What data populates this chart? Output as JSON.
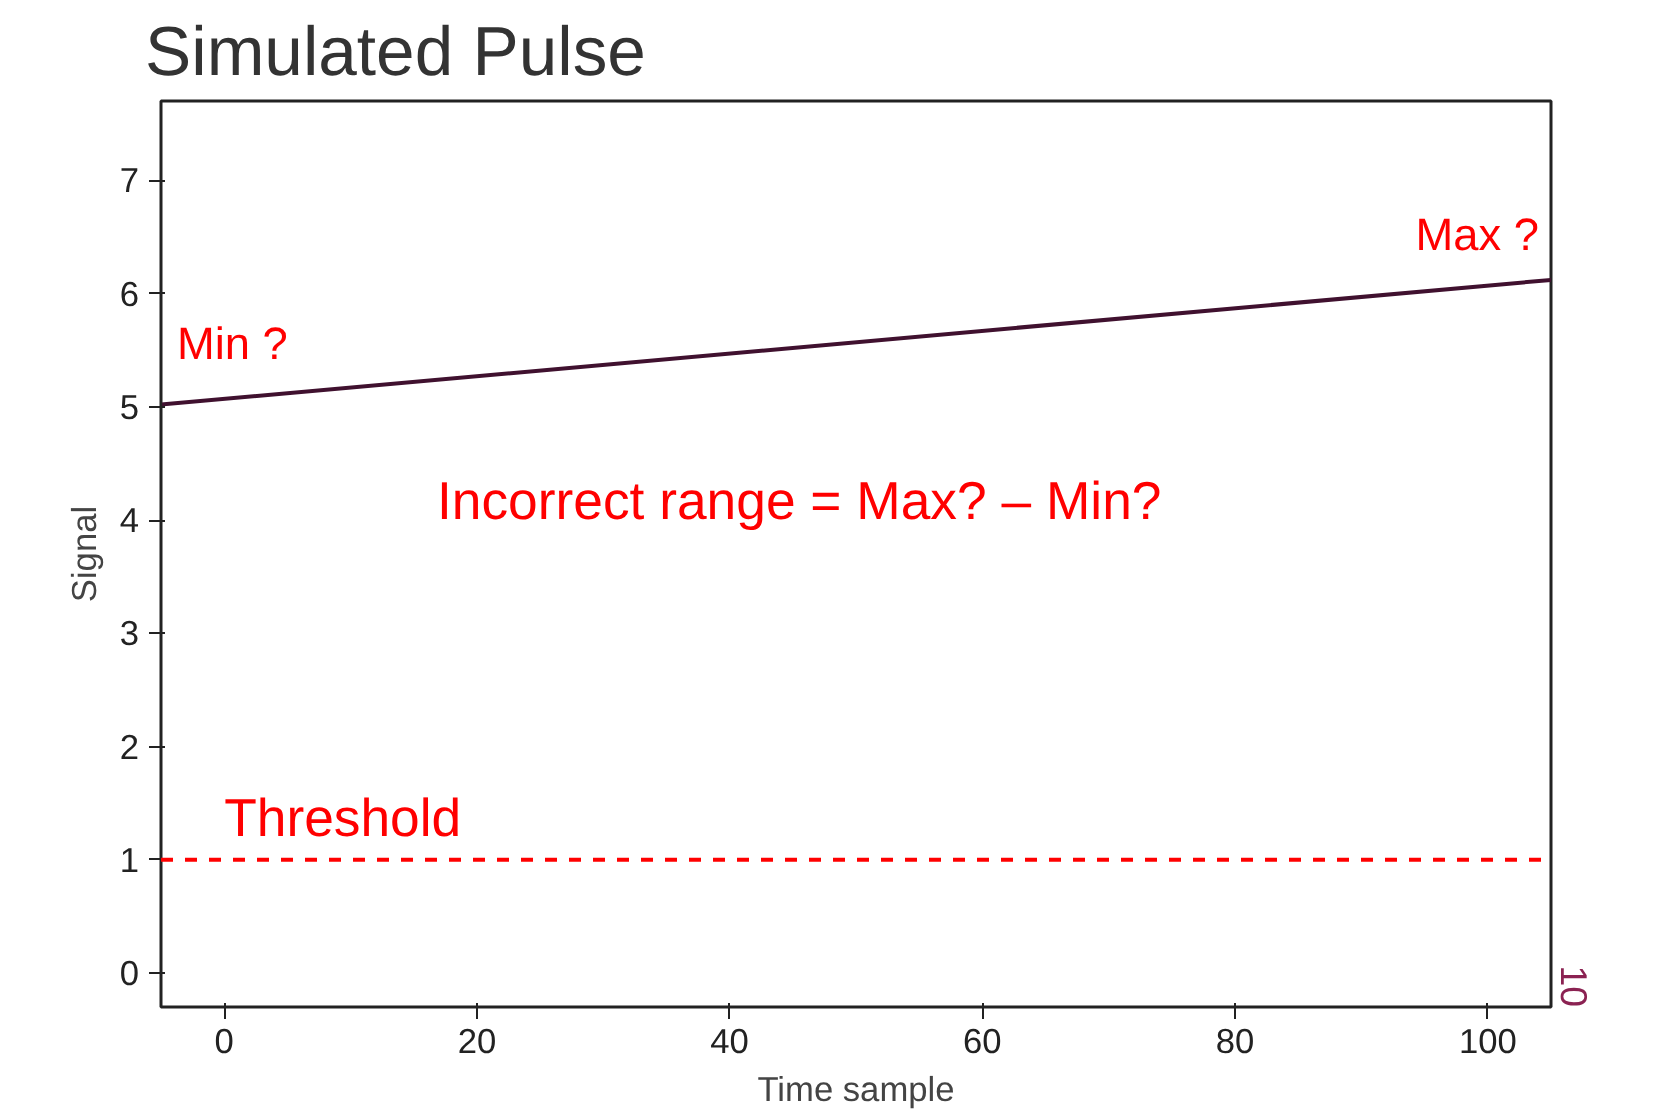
{
  "chart_data": {
    "type": "line",
    "title": "Simulated Pulse",
    "xlabel": "Time sample",
    "ylabel": "Signal",
    "x": [
      -5,
      105
    ],
    "series": [
      {
        "color": "#40112f",
        "values": [
          5.02,
          6.12
        ]
      }
    ],
    "xlim": [
      -5,
      105
    ],
    "xticks": [
      0,
      20,
      40,
      60,
      80,
      100
    ],
    "ylim": [
      -0.3,
      7.7
    ],
    "yticks": [
      0,
      1,
      2,
      3,
      4,
      5,
      6,
      7
    ],
    "grid": false,
    "line_style": "solid",
    "ref_lines": [
      {
        "axis": "y",
        "value": 1,
        "label": "Threshold",
        "color": "#ff0000",
        "line_style": "dashed"
      }
    ],
    "annotations": [
      {
        "text": "Min ?",
        "x": -5,
        "y": 5.02
      },
      {
        "text": "Max ?",
        "x": 105,
        "y": 6.12
      },
      "Incorrect range = Max? – Min?",
      "10"
    ]
  }
}
